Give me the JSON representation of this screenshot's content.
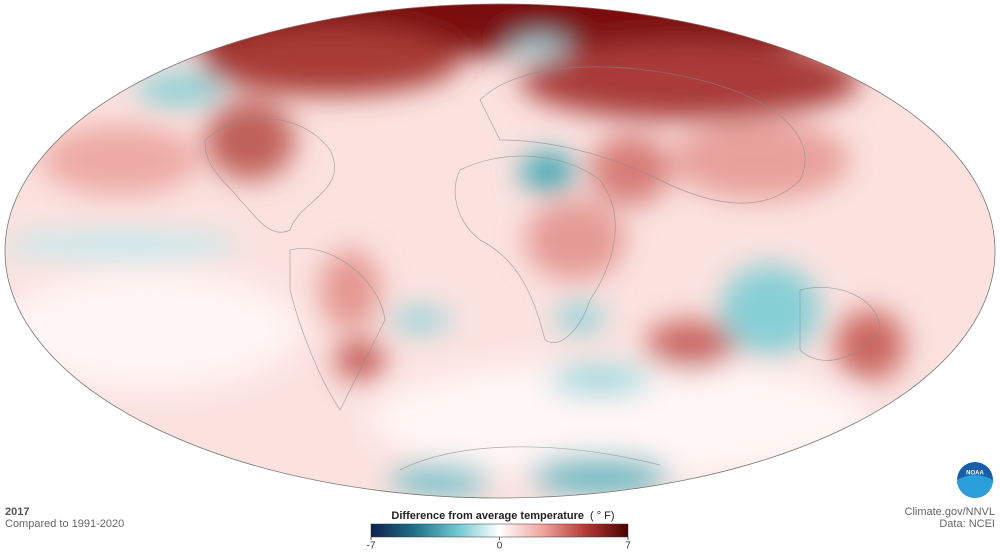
{
  "header": {
    "year": "2017",
    "baseline": "Compared to 1991-2020"
  },
  "legend": {
    "title": "Difference from average temperature",
    "unit": "( ° F)",
    "min": -7,
    "max": 7,
    "ticks": [
      -7,
      0,
      7
    ],
    "colors": [
      "#0b1f4f",
      "#1f6f86",
      "#6ec6cf",
      "#ffffff",
      "#f0a59f",
      "#b43a35",
      "#4a0000"
    ]
  },
  "credits": {
    "source": "Climate.gov/NNVL",
    "data": "Data: NCEI",
    "logo": "NOAA"
  }
}
